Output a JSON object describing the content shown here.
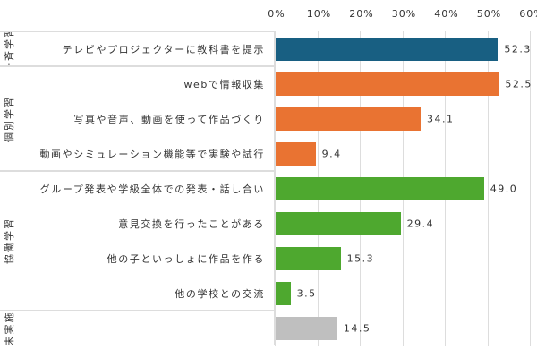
{
  "chart_data": {
    "type": "bar",
    "orientation": "horizontal",
    "xlim": [
      0,
      60
    ],
    "tick_labels": [
      "0%",
      "10%",
      "20%",
      "30%",
      "40%",
      "50%",
      "60%"
    ],
    "grid": true,
    "groups": [
      {
        "name": "一斉学習",
        "color": "#185f82",
        "rows": [
          0,
          0
        ]
      },
      {
        "name": "個別学習",
        "color": "#e97332",
        "rows": [
          1,
          3
        ]
      },
      {
        "name": "協働学習",
        "color": "#4ea82f",
        "rows": [
          4,
          7
        ]
      },
      {
        "name": "未実施",
        "color": "#bfbfbf",
        "rows": [
          8,
          8
        ]
      }
    ],
    "categories": [
      "テレビやプロジェクターに教科書を提示",
      "webで情報収集",
      "写真や音声、動画を使って作品づくり",
      "動画やシミュレーション機能等で実験や試行",
      "グループ発表や学級全体での発表・話し合い",
      "意見交換を行ったことがある",
      "他の子といっしょに作品を作る",
      "他の学校との交流",
      ""
    ],
    "values": [
      52.3,
      52.5,
      34.1,
      9.4,
      49.0,
      29.4,
      15.3,
      3.5,
      14.5
    ],
    "value_labels": [
      "52.3",
      "52.5",
      "34.1",
      "9.4",
      "49.0",
      "29.4",
      "15.3",
      "3.5",
      "14.5"
    ]
  }
}
